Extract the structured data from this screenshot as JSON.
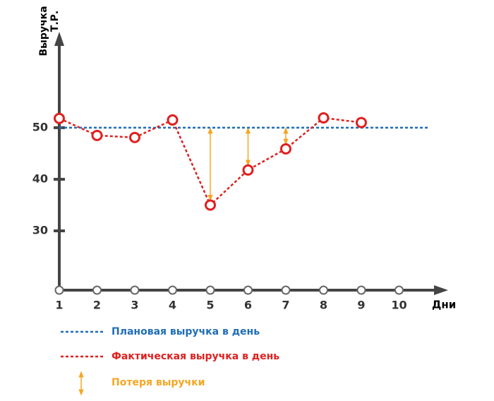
{
  "chart_data": {
    "type": "line",
    "y_label": [
      "Выручка",
      "Т.Р."
    ],
    "x_label": "Дни",
    "xlim": [
      1,
      11.3
    ],
    "xticks": [
      1,
      2,
      3,
      4,
      5,
      6,
      7,
      8,
      9,
      10
    ],
    "ylim": [
      18.5,
      68.6
    ],
    "yticks": [
      30,
      40,
      50
    ],
    "series": [
      {
        "name": "Плановая выручка в день",
        "color": "#1f6db5",
        "x": [
          1,
          10.8
        ],
        "values": [
          50,
          50
        ]
      },
      {
        "name": "Фактическая выручка в день",
        "color": "#e0201f",
        "x": [
          1,
          2,
          3,
          4,
          5,
          6,
          7,
          8,
          9
        ],
        "values": [
          51.8,
          48.5,
          48.1,
          51.5,
          35,
          41.8,
          45.9,
          51.9,
          51
        ]
      }
    ],
    "losses": {
      "name": "Потеря выручки",
      "color": "#f5a623",
      "x": [
        5,
        6,
        7
      ]
    }
  }
}
